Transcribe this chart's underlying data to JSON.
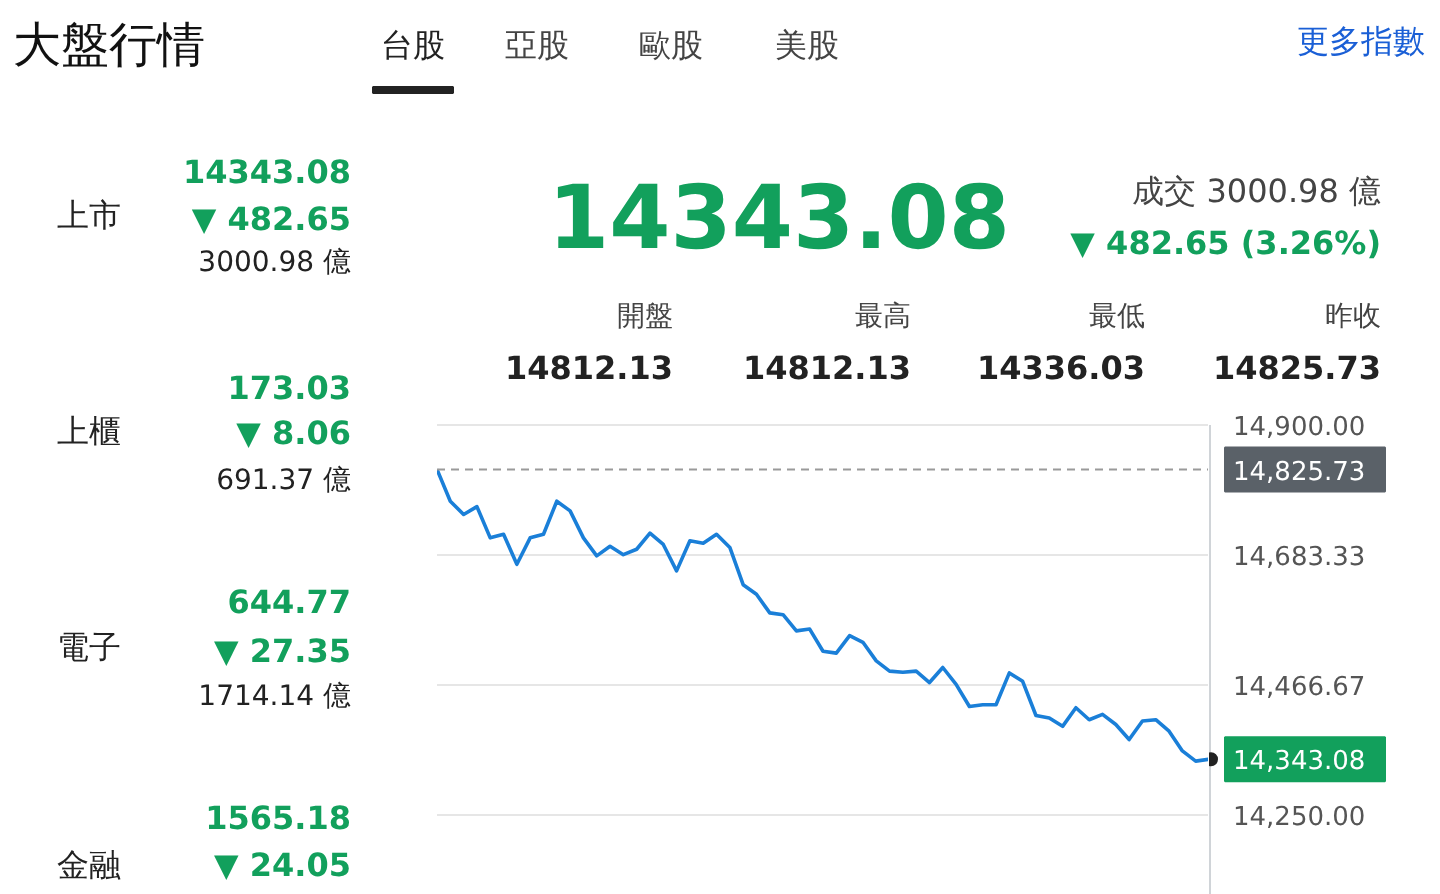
{
  "chart_data": [
    {
      "type": "other",
      "title": "大盤行情",
      "annotations": [
        "台股",
        "亞股",
        "歐股",
        "美股",
        "更多指數",
        "上市",
        "14343.08",
        "▼ 482.65",
        "3000.98 億",
        "上櫃",
        "173.03",
        "▼ 8.06",
        "691.37 億",
        "電子",
        "644.77",
        "▼ 27.35",
        "1714.14 億",
        "金融",
        "1565.18",
        "▼ 24.05",
        "14343.08",
        "成交 3000.98 億",
        "▼ 482.65 (3.26%)",
        "開盤",
        "最高",
        "最低",
        "昨收",
        "14812.13",
        "14812.13",
        "14336.03",
        "14825.73"
      ]
    },
    {
      "type": "line",
      "line_style": "solid",
      "grid": "y",
      "tick_labels": "y",
      "ylim": [
        14117,
        14900
      ],
      "yticks": [
        {
          "value": 14900,
          "label": "14,900.00"
        },
        {
          "value": 14683.33,
          "label": "14,683.33"
        },
        {
          "value": 14466.67,
          "label": "14,466.67"
        },
        {
          "value": 14250,
          "label": "14,250.00"
        }
      ],
      "ref_lines": [
        {
          "axis": "y",
          "value": 14825.73,
          "label": "14,825.73",
          "color": "#9a9a9a",
          "line_style": "dashed"
        }
      ],
      "annotations": [
        "14,343.08"
      ],
      "categories": [
        null,
        null,
        null,
        null,
        null,
        null,
        null,
        null,
        null,
        null,
        null,
        null,
        null,
        null,
        null,
        null,
        null,
        null,
        null,
        null,
        null,
        null,
        null,
        null,
        null,
        null,
        null,
        null,
        null,
        null,
        null,
        null,
        null,
        null,
        null,
        null,
        null,
        null,
        null,
        null,
        null,
        null,
        null,
        null,
        null,
        null,
        null,
        null,
        null,
        null,
        null,
        null,
        null,
        null,
        null,
        null,
        null,
        null,
        null
      ],
      "series": [
        {
          "color": "#1a7fd8",
          "values": [
            14826,
            14773,
            14751,
            14764,
            14712,
            14718,
            14668,
            14712,
            14718,
            14773,
            14757,
            14712,
            14682,
            14698,
            14684,
            14693,
            14720,
            14701,
            14657,
            14707,
            14703,
            14718,
            14696,
            14634,
            14618,
            14587,
            14584,
            14557,
            14560,
            14523,
            14520,
            14549,
            14538,
            14507,
            14490,
            14488,
            14490,
            14471,
            14496,
            14468,
            14431,
            14434,
            14434,
            14487,
            14473,
            14416,
            14412,
            14398,
            14429,
            14409,
            14418,
            14401,
            14376,
            14407,
            14409,
            14390,
            14357,
            14340,
            14343.08
          ]
        }
      ]
    }
  ]
}
